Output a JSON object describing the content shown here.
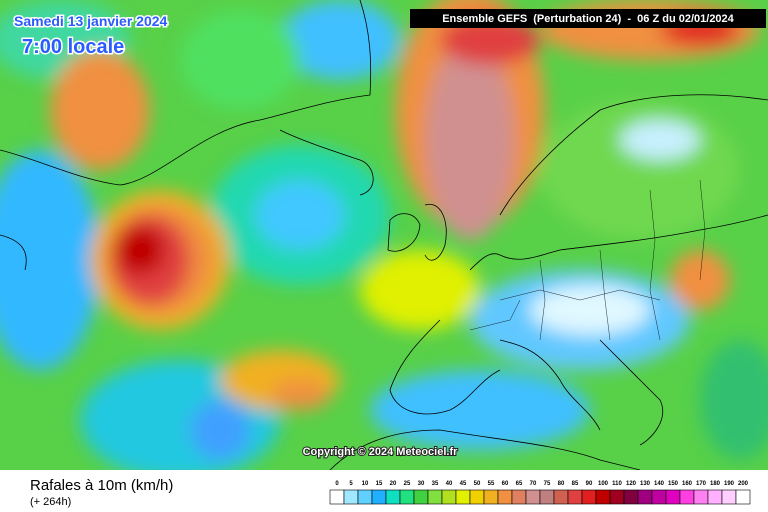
{
  "map": {
    "title": "Samedi 13 janvier 2024",
    "subtitle": "7:00 locale",
    "header": "Ensemble GEFS  (Perturbation 24)  -  06 Z du 02/01/2024",
    "copyright": "Copyright © 2024 Meteociel.fr"
  },
  "footer": {
    "variable": "Rafales à 10m (km/h)",
    "lead_time": "(+ 264h)"
  },
  "legend": {
    "scale": [
      {
        "label": "0",
        "color": "#ffffff"
      },
      {
        "label": "5",
        "color": "#a0e8ff"
      },
      {
        "label": "10",
        "color": "#60d0ff"
      },
      {
        "label": "15",
        "color": "#20b0ff"
      },
      {
        "label": "20",
        "color": "#10e0c0"
      },
      {
        "label": "25",
        "color": "#20e080"
      },
      {
        "label": "30",
        "color": "#40d040"
      },
      {
        "label": "35",
        "color": "#80e040"
      },
      {
        "label": "40",
        "color": "#b0e020"
      },
      {
        "label": "45",
        "color": "#e0f000"
      },
      {
        "label": "50",
        "color": "#f0d000"
      },
      {
        "label": "55",
        "color": "#f0b020"
      },
      {
        "label": "60",
        "color": "#f09040"
      },
      {
        "label": "65",
        "color": "#e08060"
      },
      {
        "label": "70",
        "color": "#d09090"
      },
      {
        "label": "75",
        "color": "#c08080"
      },
      {
        "label": "80",
        "color": "#d06050"
      },
      {
        "label": "85",
        "color": "#e04040"
      },
      {
        "label": "90",
        "color": "#e02020"
      },
      {
        "label": "100",
        "color": "#c00000"
      },
      {
        "label": "110",
        "color": "#a00020"
      },
      {
        "label": "120",
        "color": "#800040"
      },
      {
        "label": "130",
        "color": "#a00080"
      },
      {
        "label": "140",
        "color": "#c000a0"
      },
      {
        "label": "150",
        "color": "#e000c0"
      },
      {
        "label": "160",
        "color": "#ff40e0"
      },
      {
        "label": "170",
        "color": "#ff80f0"
      },
      {
        "label": "180",
        "color": "#ffb0ff"
      },
      {
        "label": "190",
        "color": "#ffd0ff"
      },
      {
        "label": "200",
        "color": "#ffffff"
      }
    ]
  }
}
